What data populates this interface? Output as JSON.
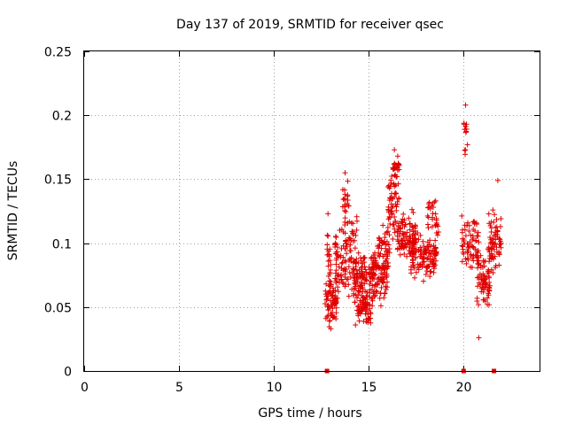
{
  "chart_data": {
    "type": "scatter",
    "title": "Day 137 of 2019, SRMTID for receiver qsec",
    "xlabel": "GPS time / hours",
    "ylabel": "SRMTID / TECUs",
    "xlim": [
      0,
      24
    ],
    "ylim": [
      0,
      0.25
    ],
    "xticks": [
      0,
      5,
      10,
      15,
      20
    ],
    "yticks": [
      0,
      0.05,
      0.1,
      0.15,
      0.2,
      0.25
    ],
    "xtick_labels": [
      "0",
      "5",
      "10",
      "15",
      "20"
    ],
    "ytick_labels": [
      "0",
      "0.05",
      "0.1",
      "0.15",
      "0.2",
      "0.25"
    ],
    "grid": true,
    "marker": "+",
    "color": "#e00000",
    "series": [
      {
        "name": "SRMTID",
        "clusters": [
          {
            "x_range": [
              12.7,
              13.3
            ],
            "y_center": 0.055,
            "y_spread": 0.02,
            "count": 70
          },
          {
            "x_range": [
              12.8,
              13.0
            ],
            "y_center": 0.09,
            "y_spread": 0.025,
            "count": 20
          },
          {
            "x_range": [
              13.2,
              14.4
            ],
            "y_center": 0.09,
            "y_spread": 0.03,
            "count": 120
          },
          {
            "x_range": [
              13.6,
              14.0
            ],
            "y_center": 0.135,
            "y_spread": 0.02,
            "count": 20
          },
          {
            "x_range": [
              14.2,
              14.9
            ],
            "y_center": 0.07,
            "y_spread": 0.022,
            "count": 80
          },
          {
            "x_range": [
              14.4,
              15.2
            ],
            "y_center": 0.05,
            "y_spread": 0.012,
            "count": 60
          },
          {
            "x_range": [
              15.0,
              16.0
            ],
            "y_center": 0.075,
            "y_spread": 0.02,
            "count": 110
          },
          {
            "x_range": [
              15.3,
              16.1
            ],
            "y_center": 0.095,
            "y_spread": 0.018,
            "count": 40
          },
          {
            "x_range": [
              16.0,
              16.6
            ],
            "y_center": 0.13,
            "y_spread": 0.025,
            "count": 60
          },
          {
            "x_range": [
              16.2,
              16.6
            ],
            "y_center": 0.16,
            "y_spread": 0.008,
            "count": 25
          },
          {
            "x_range": [
              16.5,
              17.5
            ],
            "y_center": 0.105,
            "y_spread": 0.018,
            "count": 100
          },
          {
            "x_range": [
              17.2,
              18.6
            ],
            "y_center": 0.09,
            "y_spread": 0.016,
            "count": 120
          },
          {
            "x_range": [
              18.1,
              18.7
            ],
            "y_center": 0.12,
            "y_spread": 0.015,
            "count": 30
          },
          {
            "x_range": [
              19.9,
              20.8
            ],
            "y_center": 0.1,
            "y_spread": 0.02,
            "count": 70
          },
          {
            "x_range": [
              20.0,
              20.2
            ],
            "y_center": 0.185,
            "y_spread": 0.015,
            "count": 10
          },
          {
            "x_range": [
              20.7,
              21.4
            ],
            "y_center": 0.07,
            "y_spread": 0.02,
            "count": 70
          },
          {
            "x_range": [
              21.3,
              22.0
            ],
            "y_center": 0.1,
            "y_spread": 0.022,
            "count": 70
          }
        ]
      }
    ],
    "outliers": [
      {
        "x": 20.1,
        "y": 0.208
      },
      {
        "x": 20.15,
        "y": 0.193
      },
      {
        "x": 20.2,
        "y": 0.177
      },
      {
        "x": 20.8,
        "y": 0.026
      },
      {
        "x": 13.0,
        "y": 0.033
      },
      {
        "x": 14.3,
        "y": 0.036
      },
      {
        "x": 16.35,
        "y": 0.173
      },
      {
        "x": 13.75,
        "y": 0.155
      },
      {
        "x": 21.8,
        "y": 0.149
      },
      {
        "x": 12.85,
        "y": 0.123
      }
    ],
    "zero_markers": [
      12.8,
      20.0,
      21.6
    ]
  }
}
